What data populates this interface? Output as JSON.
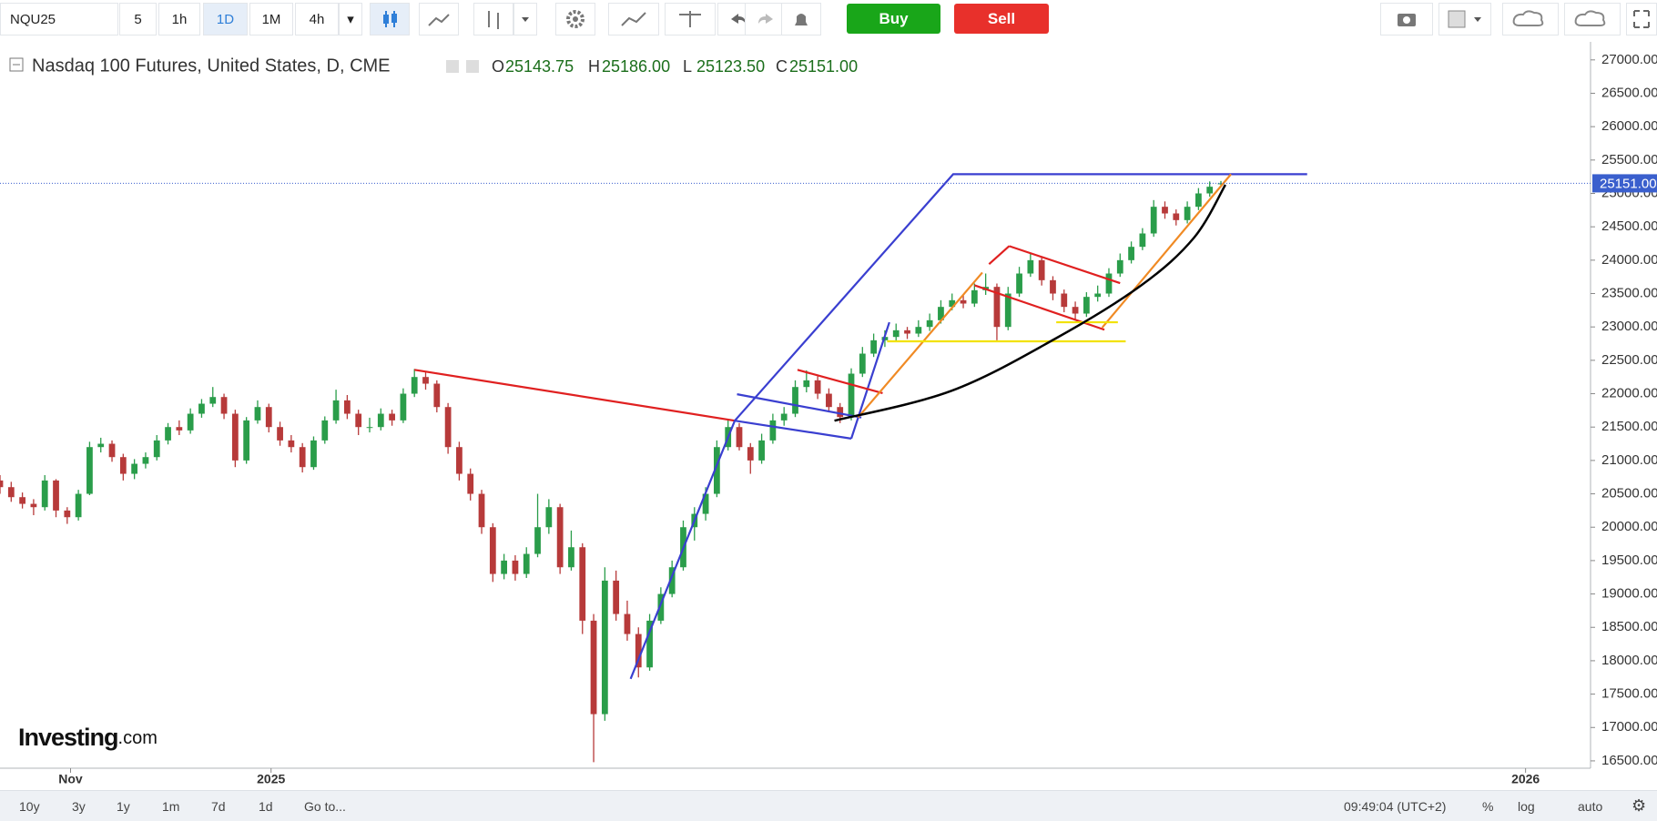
{
  "toolbar": {
    "symbol": "NQU25",
    "intervals": [
      "5",
      "1h",
      "1D",
      "1M",
      "4h"
    ],
    "active_interval": 2,
    "buy": "Buy",
    "sell": "Sell"
  },
  "chart_data": {
    "type": "candlestick",
    "title": "Nasdaq 100 Futures, United States, D, CME",
    "ohlc_legend": [
      {
        "prefix": "O",
        "value": "25143.75"
      },
      {
        "prefix": "H",
        "value": "25186.00"
      },
      {
        "prefix": "L",
        "value": "25123.50"
      },
      {
        "prefix": "C",
        "value": "25151.00"
      }
    ],
    "up_color": "#2a9d4a",
    "down_color": "#b73a3a",
    "candles": [
      [
        20700,
        20780,
        20500,
        20600
      ],
      [
        20600,
        20680,
        20380,
        20450
      ],
      [
        20450,
        20520,
        20280,
        20350
      ],
      [
        20350,
        20420,
        20180,
        20300
      ],
      [
        20300,
        20780,
        20250,
        20700
      ],
      [
        20700,
        20720,
        20150,
        20250
      ],
      [
        20250,
        20300,
        20050,
        20150
      ],
      [
        20150,
        20560,
        20100,
        20500
      ],
      [
        20500,
        21280,
        20480,
        21200
      ],
      [
        21200,
        21340,
        21120,
        21250
      ],
      [
        21250,
        21300,
        20980,
        21050
      ],
      [
        21050,
        21100,
        20700,
        20800
      ],
      [
        20800,
        21020,
        20720,
        20950
      ],
      [
        20950,
        21120,
        20880,
        21050
      ],
      [
        21050,
        21380,
        21000,
        21300
      ],
      [
        21300,
        21560,
        21240,
        21500
      ],
      [
        21500,
        21600,
        21380,
        21450
      ],
      [
        21450,
        21780,
        21400,
        21700
      ],
      [
        21700,
        21920,
        21640,
        21850
      ],
      [
        21850,
        22100,
        21800,
        21950
      ],
      [
        21950,
        22000,
        21620,
        21700
      ],
      [
        21700,
        21760,
        20900,
        21000
      ],
      [
        21000,
        21650,
        20950,
        21600
      ],
      [
        21600,
        21900,
        21550,
        21800
      ],
      [
        21800,
        21850,
        21420,
        21500
      ],
      [
        21500,
        21580,
        21220,
        21300
      ],
      [
        21300,
        21380,
        21120,
        21200
      ],
      [
        21200,
        21260,
        20820,
        20900
      ],
      [
        20900,
        21360,
        20860,
        21300
      ],
      [
        21300,
        21660,
        21250,
        21600
      ],
      [
        21600,
        22060,
        21550,
        21900
      ],
      [
        21900,
        21980,
        21620,
        21700
      ],
      [
        21700,
        21760,
        21380,
        21500
      ],
      [
        21500,
        21640,
        21420,
        21500
      ],
      [
        21500,
        21780,
        21450,
        21700
      ],
      [
        21700,
        21760,
        21520,
        21600
      ],
      [
        21600,
        22080,
        21560,
        22000
      ],
      [
        22000,
        22370,
        21950,
        22250
      ],
      [
        22250,
        22320,
        22060,
        22150
      ],
      [
        22150,
        22200,
        21720,
        21800
      ],
      [
        21800,
        21860,
        21100,
        21200
      ],
      [
        21200,
        21280,
        20700,
        20800
      ],
      [
        20800,
        20880,
        20400,
        20500
      ],
      [
        20500,
        20560,
        19900,
        20000
      ],
      [
        20000,
        20060,
        19180,
        19300
      ],
      [
        19300,
        19600,
        19220,
        19500
      ],
      [
        19500,
        19580,
        19200,
        19300
      ],
      [
        19300,
        19700,
        19240,
        19600
      ],
      [
        19600,
        20500,
        19550,
        20000
      ],
      [
        20000,
        20420,
        19900,
        20300
      ],
      [
        20300,
        20350,
        19300,
        19400
      ],
      [
        19400,
        19950,
        19350,
        19700
      ],
      [
        19700,
        19760,
        18400,
        18600
      ],
      [
        18600,
        18700,
        16480,
        17200
      ],
      [
        17200,
        19400,
        17100,
        19200
      ],
      [
        19200,
        19350,
        18600,
        18700
      ],
      [
        18700,
        18900,
        18300,
        18400
      ],
      [
        18400,
        18500,
        17750,
        17900
      ],
      [
        17900,
        18700,
        17850,
        18600
      ],
      [
        18600,
        19100,
        18550,
        19000
      ],
      [
        19000,
        19500,
        18950,
        19400
      ],
      [
        19400,
        20100,
        19350,
        20000
      ],
      [
        20000,
        20300,
        19800,
        20200
      ],
      [
        20200,
        20600,
        20100,
        20500
      ],
      [
        20500,
        21300,
        20450,
        21200
      ],
      [
        21200,
        21600,
        21150,
        21500
      ],
      [
        21500,
        21560,
        21150,
        21200
      ],
      [
        21200,
        21260,
        20800,
        21000
      ],
      [
        21000,
        21400,
        20950,
        21300
      ],
      [
        21300,
        21700,
        21250,
        21600
      ],
      [
        21600,
        21800,
        21520,
        21700
      ],
      [
        21700,
        22200,
        21650,
        22100
      ],
      [
        22100,
        22350,
        22020,
        22200
      ],
      [
        22200,
        22260,
        21920,
        22000
      ],
      [
        22000,
        22080,
        21720,
        21800
      ],
      [
        21800,
        21860,
        21560,
        21650
      ],
      [
        21650,
        22380,
        21600,
        22300
      ],
      [
        22300,
        22700,
        22250,
        22600
      ],
      [
        22600,
        22900,
        22550,
        22800
      ],
      [
        22800,
        22950,
        22700,
        22850
      ],
      [
        22850,
        23050,
        22780,
        22950
      ],
      [
        22950,
        23000,
        22820,
        22900
      ],
      [
        22900,
        23100,
        22850,
        23000
      ],
      [
        23000,
        23200,
        22940,
        23100
      ],
      [
        23100,
        23400,
        23050,
        23300
      ],
      [
        23300,
        23500,
        23250,
        23400
      ],
      [
        23400,
        23480,
        23280,
        23350
      ],
      [
        23350,
        23650,
        23300,
        23550
      ],
      [
        23550,
        23800,
        23480,
        23600
      ],
      [
        23600,
        23650,
        22800,
        23000
      ],
      [
        23000,
        23600,
        22950,
        23500
      ],
      [
        23500,
        23900,
        23450,
        23800
      ],
      [
        23800,
        24100,
        23750,
        24000
      ],
      [
        24000,
        24050,
        23620,
        23700
      ],
      [
        23700,
        23760,
        23400,
        23500
      ],
      [
        23500,
        23560,
        23220,
        23300
      ],
      [
        23300,
        23380,
        23100,
        23200
      ],
      [
        23200,
        23520,
        23150,
        23450
      ],
      [
        23450,
        23620,
        23380,
        23500
      ],
      [
        23500,
        23880,
        23450,
        23800
      ],
      [
        23800,
        24100,
        23750,
        24000
      ],
      [
        24000,
        24280,
        23950,
        24200
      ],
      [
        24200,
        24480,
        24150,
        24400
      ],
      [
        24400,
        24900,
        24350,
        24800
      ],
      [
        24800,
        24880,
        24620,
        24700
      ],
      [
        24700,
        24760,
        24520,
        24600
      ],
      [
        24600,
        24880,
        24550,
        24800
      ],
      [
        24800,
        25080,
        24750,
        25000
      ],
      [
        25000,
        25180,
        24950,
        25100
      ],
      [
        25143.75,
        25186,
        25123.5,
        25151
      ]
    ],
    "xlim": [
      0,
      142
    ],
    "xticks": [
      {
        "value": 6.3,
        "label": "Nov"
      },
      {
        "value": 24.2,
        "label": "2025"
      },
      {
        "value": 136.2,
        "label": "2026"
      }
    ],
    "ylim": [
      16390,
      27270
    ],
    "yticks": [
      {
        "value": 16500,
        "label": "16500.00"
      },
      {
        "value": 17000,
        "label": "17000.00"
      },
      {
        "value": 17500,
        "label": "17500.00"
      },
      {
        "value": 18000,
        "label": "18000.00"
      },
      {
        "value": 18500,
        "label": "18500.00"
      },
      {
        "value": 19000,
        "label": "19000.00"
      },
      {
        "value": 19500,
        "label": "19500.00"
      },
      {
        "value": 20000,
        "label": "20000.00"
      },
      {
        "value": 20500,
        "label": "20500.00"
      },
      {
        "value": 21000,
        "label": "21000.00"
      },
      {
        "value": 21500,
        "label": "21500.00"
      },
      {
        "value": 22000,
        "label": "22000.00"
      },
      {
        "value": 22500,
        "label": "22500.00"
      },
      {
        "value": 23000,
        "label": "23000.00"
      },
      {
        "value": 23500,
        "label": "23500.00"
      },
      {
        "value": 24000,
        "label": "24000.00"
      },
      {
        "value": 24500,
        "label": "24500.00"
      },
      {
        "value": 25000,
        "label": "25000.00"
      },
      {
        "value": 25500,
        "label": "25500.00"
      },
      {
        "value": 26000,
        "label": "26000.00"
      },
      {
        "value": 26500,
        "label": "26500.00"
      },
      {
        "value": 27000,
        "label": "27000.00"
      }
    ],
    "last_price": {
      "value": 25151,
      "label": "25151.00"
    },
    "last_price_color": "#3a5fcd",
    "drawings": [
      {
        "color": "#e02020",
        "points": [
          [
            37.0,
            22357
          ],
          [
            65.6,
            21596
          ]
        ]
      },
      {
        "color": "#3a3fd0",
        "points": [
          [
            56.3,
            17729
          ],
          [
            65.6,
            21596
          ],
          [
            85.1,
            25288
          ],
          [
            116.7,
            25288
          ]
        ]
      },
      {
        "color": "#3a3fd0",
        "points": [
          [
            65.8,
            21992
          ],
          [
            76.9,
            21643
          ]
        ]
      },
      {
        "color": "#3a3fd0",
        "points": [
          [
            65.6,
            21596
          ],
          [
            76.0,
            21327
          ]
        ]
      },
      {
        "color": "#3a3fd0",
        "points": [
          [
            76.0,
            21327
          ],
          [
            79.4,
            23070
          ]
        ]
      },
      {
        "color": "#e02020",
        "points": [
          [
            71.2,
            22357
          ],
          [
            78.8,
            22008
          ]
        ]
      },
      {
        "color": "#f08a24",
        "points": [
          [
            76.6,
            21643
          ],
          [
            87.7,
            23815
          ]
        ]
      },
      {
        "color": "#f08a24",
        "points": [
          [
            98.4,
            22990
          ],
          [
            109.9,
            25288
          ]
        ]
      },
      {
        "color": "#e02020",
        "points": [
          [
            90.1,
            24211
          ],
          [
            100.0,
            23656
          ]
        ]
      },
      {
        "color": "#e02020",
        "points": [
          [
            87.0,
            23624
          ],
          [
            98.6,
            22958
          ]
        ]
      },
      {
        "color": "#e02020",
        "points": [
          [
            88.3,
            23941
          ],
          [
            90.1,
            24211
          ]
        ]
      },
      {
        "color": "#f2e200",
        "points": [
          [
            79.2,
            22784
          ],
          [
            100.5,
            22784
          ]
        ]
      },
      {
        "color": "#f2e200",
        "points": [
          [
            94.3,
            23070
          ],
          [
            99.8,
            23070
          ]
        ]
      },
      {
        "color": "#000000",
        "smooth": true,
        "points": [
          [
            74.5,
            21596
          ],
          [
            84.9,
            22040
          ],
          [
            94.3,
            22832
          ],
          [
            101.9,
            23624
          ],
          [
            106.6,
            24337
          ],
          [
            109.4,
            25130
          ]
        ]
      }
    ],
    "watermark": {
      "brand": "Investing",
      "suffix": ".com"
    }
  },
  "footer": {
    "ranges": [
      "10y",
      "3y",
      "1y",
      "1m",
      "7d",
      "1d"
    ],
    "goto": "Go to...",
    "time": "09:49:04 (UTC+2)",
    "options": [
      "%",
      "log",
      "auto"
    ]
  }
}
